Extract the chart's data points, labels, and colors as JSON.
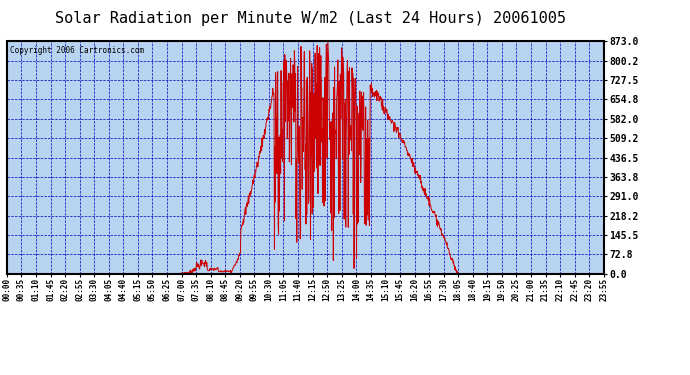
{
  "title": "Solar Radiation per Minute W/m2 (Last 24 Hours) 20061005",
  "copyright": "Copyright 2006 Cartronics.com",
  "background_color": "#FFFFFF",
  "plot_bg_color": "#B8D4F0",
  "line_color": "#CC0000",
  "grid_color": "#0000BB",
  "border_color": "#000000",
  "yticks": [
    0.0,
    72.8,
    145.5,
    218.2,
    291.0,
    363.8,
    436.5,
    509.2,
    582.0,
    654.8,
    727.5,
    800.2,
    873.0
  ],
  "ymax": 873.0,
  "ymin": 0.0,
  "xtick_labels": [
    "00:00",
    "00:35",
    "01:10",
    "01:45",
    "02:20",
    "02:55",
    "03:30",
    "04:05",
    "04:40",
    "05:15",
    "05:50",
    "06:25",
    "07:00",
    "07:35",
    "08:10",
    "08:45",
    "09:20",
    "09:55",
    "10:30",
    "11:05",
    "11:40",
    "12:15",
    "12:50",
    "13:25",
    "14:00",
    "14:35",
    "15:10",
    "15:45",
    "16:20",
    "16:55",
    "17:30",
    "18:05",
    "18:40",
    "19:15",
    "19:50",
    "20:25",
    "21:00",
    "21:35",
    "22:10",
    "22:45",
    "23:20",
    "23:55"
  ],
  "title_fontsize": 11,
  "ylabel_fontsize": 7,
  "xlabel_fontsize": 5.5,
  "copyright_fontsize": 5.5
}
